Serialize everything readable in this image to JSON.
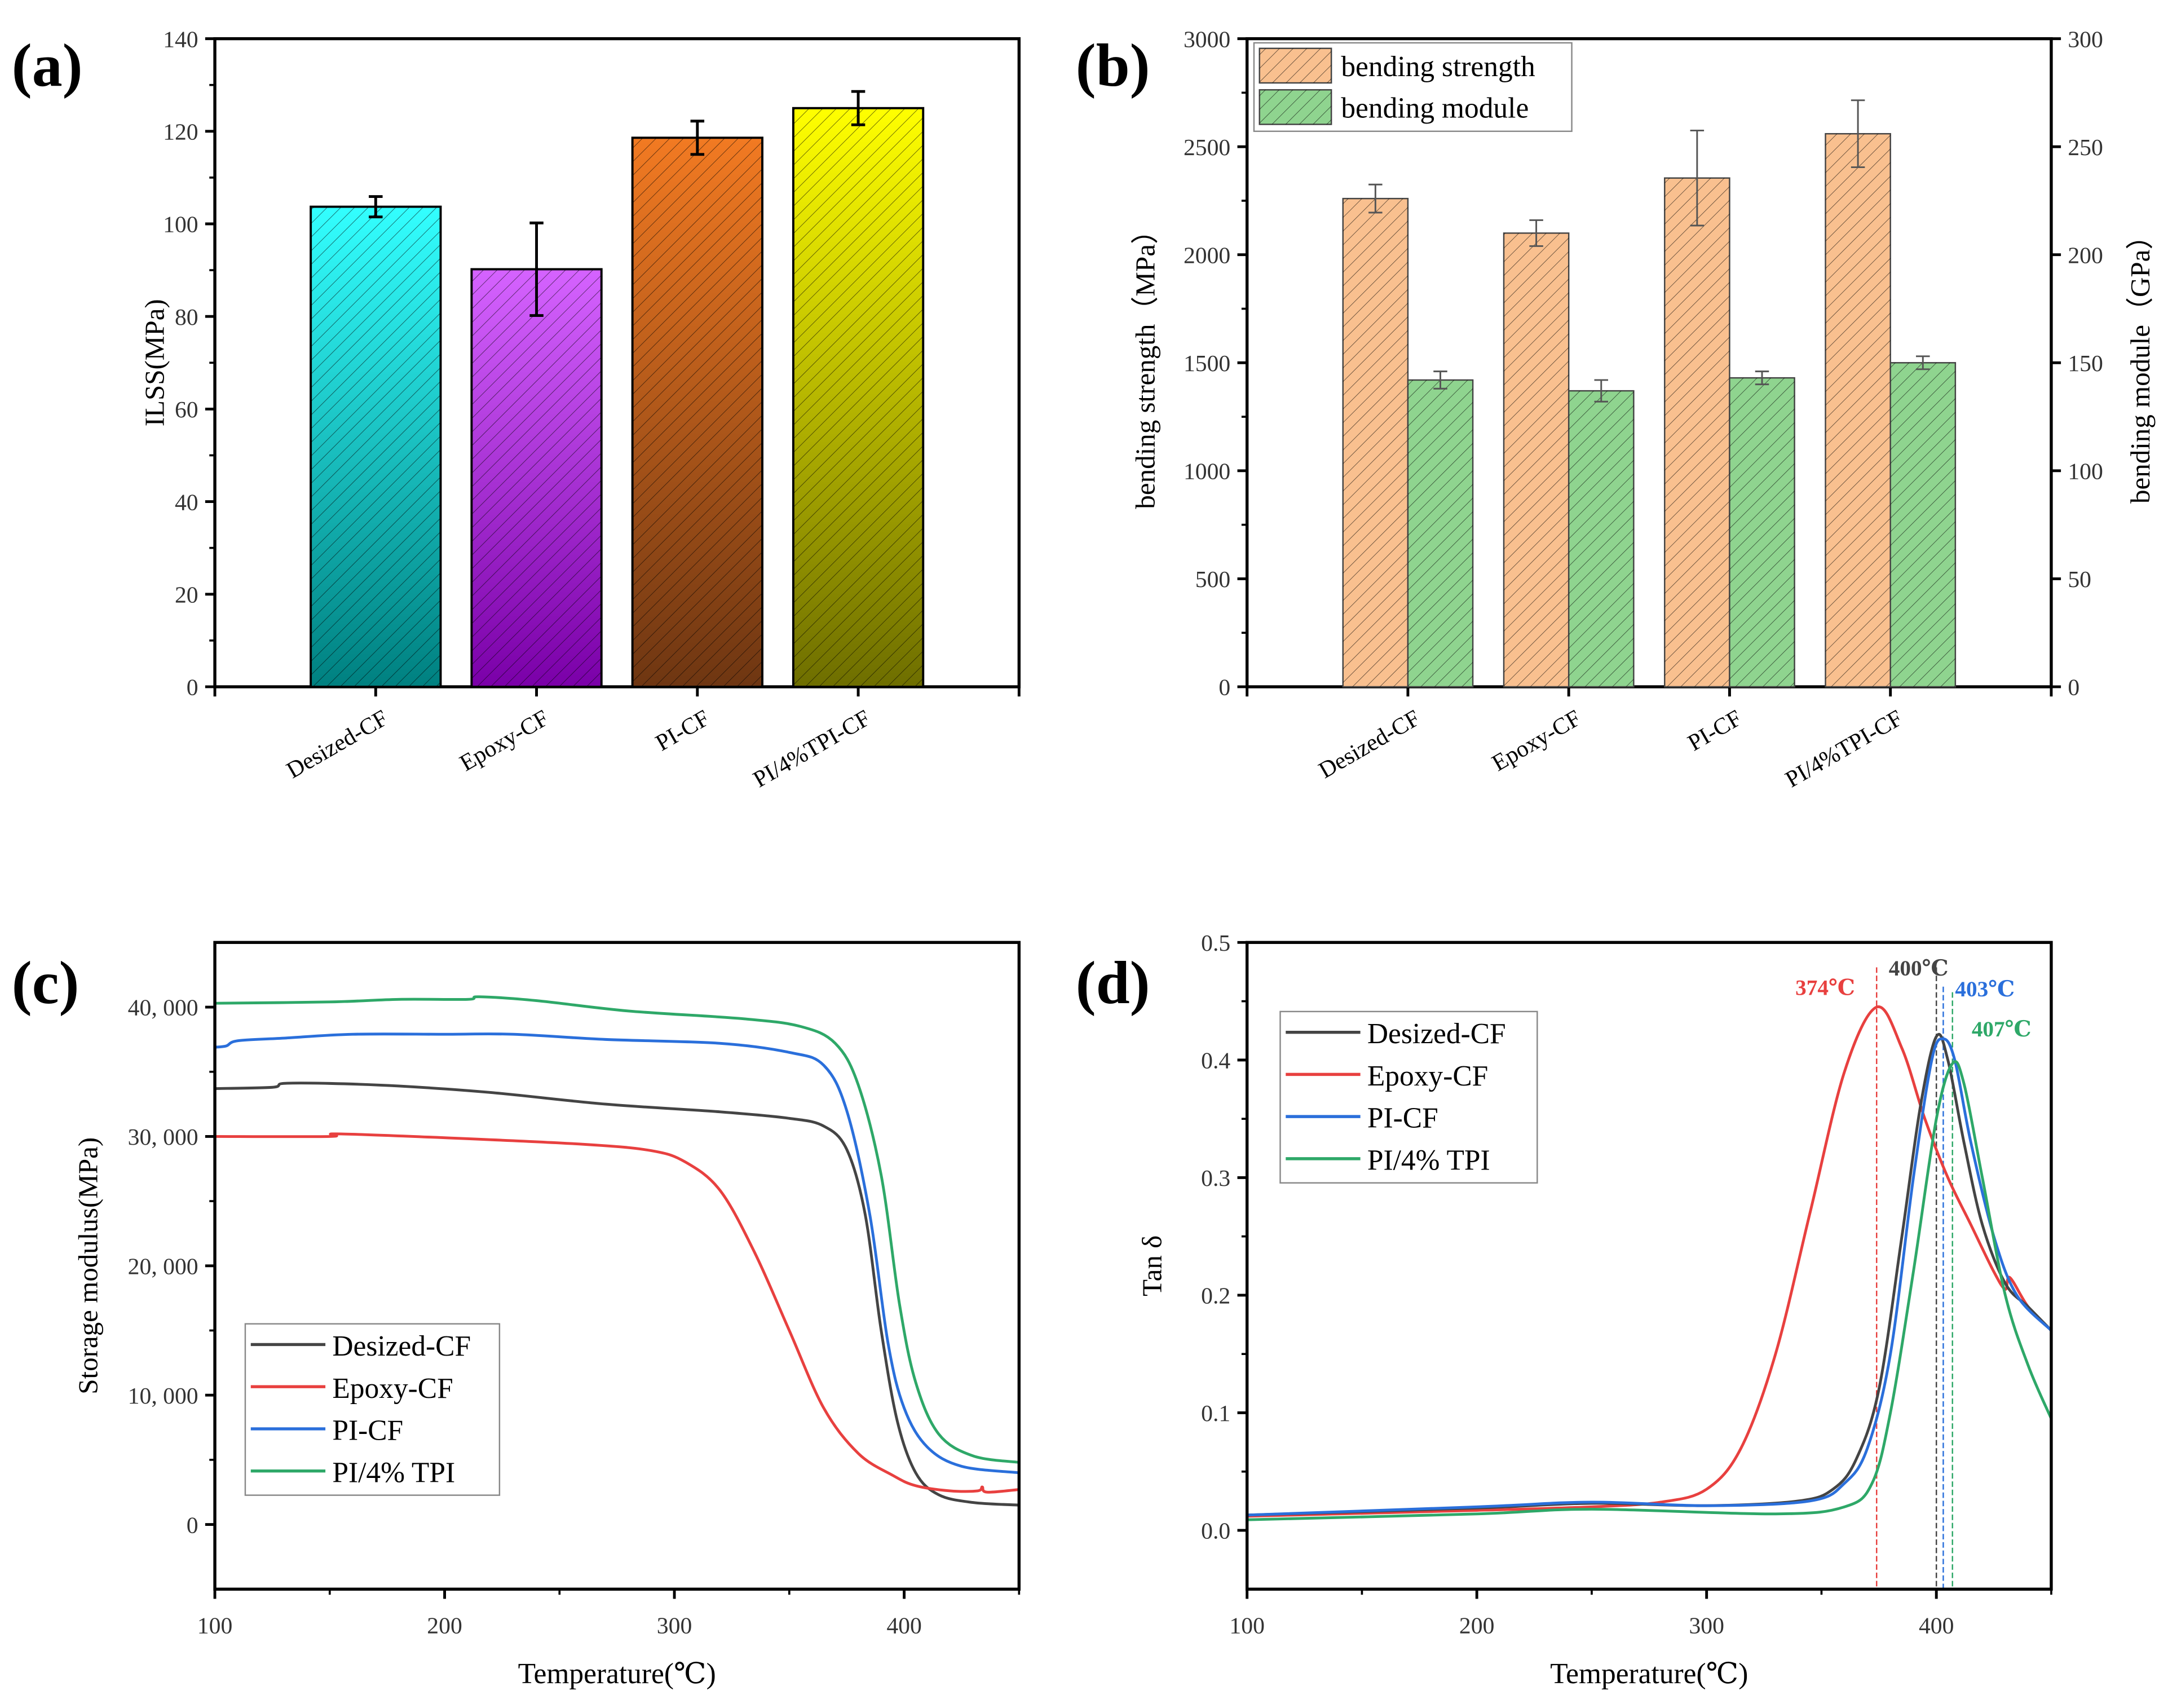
{
  "figure": {
    "panel_labels": [
      "(a)",
      "(b)",
      "(c)",
      "(d)"
    ]
  },
  "chart_data": [
    {
      "type": "bar",
      "panel": "(a)",
      "categories": [
        "Desized-CF",
        "Epoxy-CF",
        "PI-CF",
        "PI/4%TPI-CF"
      ],
      "values": [
        103.7,
        90.2,
        118.6,
        125.0
      ],
      "errors": [
        2.2,
        10.0,
        3.6,
        3.6
      ],
      "colors_top": [
        "#33ffff",
        "#d563ff",
        "#f27a22",
        "#ffff00"
      ],
      "colors_bottom": [
        "#008080",
        "#7a00a8",
        "#6e3612",
        "#6e6e00"
      ],
      "title": "",
      "xlabel": "",
      "ylabel": "ILSS(MPa)",
      "ylim": [
        0,
        140
      ],
      "ytick_values": [
        0,
        20,
        40,
        60,
        80,
        100,
        120,
        140
      ],
      "yticks": [
        "0",
        "20",
        "40",
        "60",
        "80",
        "100",
        "120",
        "140"
      ]
    },
    {
      "type": "bar",
      "panel": "(b)",
      "categories": [
        "Desized-CF",
        "Epoxy-CF",
        "PI-CF",
        "PI/4%TPI-CF"
      ],
      "series": [
        {
          "name": "bending strength",
          "axis": "left",
          "values": [
            2260,
            2100,
            2355,
            2560
          ],
          "errors": [
            65,
            60,
            220,
            155
          ],
          "color": "#f9c08f"
        },
        {
          "name": "bending module",
          "axis": "right",
          "values": [
            142,
            137,
            143,
            150
          ],
          "errors": [
            4,
            5,
            3,
            3
          ],
          "color": "#8fd48f"
        }
      ],
      "ylabel": "bending strength（MPa）",
      "y2label": "bending module（GPa）",
      "ylim": [
        0,
        3000
      ],
      "y2lim": [
        0,
        300
      ],
      "ytick_values": [
        0,
        500,
        1000,
        1500,
        2000,
        2500,
        3000
      ],
      "yticks": [
        "0",
        "500",
        "1000",
        "1500",
        "2000",
        "2500",
        "3000"
      ],
      "y2tick_values": [
        0,
        50,
        100,
        150,
        200,
        250,
        300
      ],
      "y2ticks": [
        "0",
        "50",
        "100",
        "150",
        "200",
        "250",
        "300"
      ],
      "legend": "top-left"
    },
    {
      "type": "line",
      "panel": "(c)",
      "xlabel": "Temperature(℃)",
      "ylabel": "Storage modulus(MPa)",
      "xlim": [
        100,
        450
      ],
      "ylim": [
        -5000,
        45000
      ],
      "xtick_values": [
        100,
        200,
        300,
        400
      ],
      "xticks": [
        "100",
        "200",
        "300",
        "400"
      ],
      "ytick_values": [
        0,
        10000,
        20000,
        30000,
        40000
      ],
      "yticks": [
        "0",
        "10, 000",
        "20, 000",
        "30, 000",
        "40, 000"
      ],
      "legend": "bottom-left",
      "series": [
        {
          "name": "Desized-CF",
          "color": "#444444",
          "points": [
            [
              100,
              33700
            ],
            [
              125,
              33800
            ],
            [
              130,
              34100
            ],
            [
              150,
              34100
            ],
            [
              180,
              33900
            ],
            [
              220,
              33400
            ],
            [
              270,
              32500
            ],
            [
              320,
              31900
            ],
            [
              350,
              31400
            ],
            [
              365,
              30800
            ],
            [
              375,
              29000
            ],
            [
              383,
              24000
            ],
            [
              390,
              15000
            ],
            [
              397,
              8000
            ],
            [
              405,
              4000
            ],
            [
              415,
              2300
            ],
            [
              430,
              1700
            ],
            [
              450,
              1500
            ]
          ]
        },
        {
          "name": "Epoxy-CF",
          "color": "#e8403f",
          "points": [
            [
              100,
              30000
            ],
            [
              150,
              30000
            ],
            [
              153,
              30200
            ],
            [
              200,
              29900
            ],
            [
              260,
              29400
            ],
            [
              290,
              28900
            ],
            [
              305,
              28000
            ],
            [
              320,
              25800
            ],
            [
              335,
              21000
            ],
            [
              350,
              15000
            ],
            [
              365,
              9000
            ],
            [
              380,
              5500
            ],
            [
              395,
              3800
            ],
            [
              405,
              3000
            ],
            [
              420,
              2600
            ],
            [
              432,
              2600
            ],
            [
              434,
              2900
            ],
            [
              436,
              2500
            ],
            [
              450,
              2700
            ]
          ]
        },
        {
          "name": "PI-CF",
          "color": "#2a6fdb",
          "points": [
            [
              100,
              36900
            ],
            [
              105,
              37000
            ],
            [
              110,
              37400
            ],
            [
              130,
              37600
            ],
            [
              160,
              37900
            ],
            [
              200,
              37900
            ],
            [
              230,
              37900
            ],
            [
              270,
              37500
            ],
            [
              320,
              37200
            ],
            [
              350,
              36500
            ],
            [
              365,
              35500
            ],
            [
              375,
              32000
            ],
            [
              385,
              24000
            ],
            [
              393,
              14000
            ],
            [
              400,
              9000
            ],
            [
              410,
              6000
            ],
            [
              425,
              4500
            ],
            [
              450,
              4000
            ]
          ]
        },
        {
          "name": "PI/4% TPI",
          "color": "#2ea868",
          "points": [
            [
              100,
              40300
            ],
            [
              150,
              40400
            ],
            [
              180,
              40600
            ],
            [
              210,
              40600
            ],
            [
              215,
              40800
            ],
            [
              240,
              40500
            ],
            [
              280,
              39700
            ],
            [
              330,
              39100
            ],
            [
              355,
              38500
            ],
            [
              370,
              37200
            ],
            [
              380,
              34000
            ],
            [
              390,
              27000
            ],
            [
              398,
              17000
            ],
            [
              405,
              11000
            ],
            [
              415,
              7000
            ],
            [
              430,
              5300
            ],
            [
              450,
              4800
            ]
          ]
        }
      ]
    },
    {
      "type": "line",
      "panel": "(d)",
      "xlabel": "Temperature(℃)",
      "ylabel": "Tan δ",
      "xlim": [
        100,
        450
      ],
      "ylim": [
        -0.05,
        0.5
      ],
      "xtick_values": [
        100,
        200,
        300,
        400
      ],
      "xticks": [
        "100",
        "200",
        "300",
        "400"
      ],
      "ytick_values": [
        0,
        0.1,
        0.2,
        0.3,
        0.4,
        0.5
      ],
      "yticks": [
        "0.0",
        "0.1",
        "0.2",
        "0.3",
        "0.4",
        "0.5"
      ],
      "legend": "top-left",
      "series": [
        {
          "name": "Desized-CF",
          "color": "#444444",
          "points": [
            [
              100,
              0.013
            ],
            [
              200,
              0.019
            ],
            [
              250,
              0.023
            ],
            [
              300,
              0.021
            ],
            [
              340,
              0.025
            ],
            [
              355,
              0.035
            ],
            [
              365,
              0.06
            ],
            [
              375,
              0.12
            ],
            [
              385,
              0.25
            ],
            [
              393,
              0.36
            ],
            [
              400,
              0.42
            ],
            [
              405,
              0.4
            ],
            [
              412,
              0.33
            ],
            [
              420,
              0.26
            ],
            [
              430,
              0.21
            ],
            [
              440,
              0.19
            ],
            [
              450,
              0.17
            ]
          ]
        },
        {
          "name": "Epoxy-CF",
          "color": "#e8403f",
          "points": [
            [
              100,
              0.012
            ],
            [
              200,
              0.017
            ],
            [
              250,
              0.02
            ],
            [
              280,
              0.024
            ],
            [
              300,
              0.035
            ],
            [
              315,
              0.07
            ],
            [
              330,
              0.15
            ],
            [
              345,
              0.27
            ],
            [
              360,
              0.39
            ],
            [
              374,
              0.445
            ],
            [
              385,
              0.41
            ],
            [
              395,
              0.35
            ],
            [
              405,
              0.3
            ],
            [
              415,
              0.26
            ],
            [
              425,
              0.22
            ],
            [
              430,
              0.205
            ],
            [
              432,
              0.215
            ],
            [
              440,
              0.19
            ],
            [
              450,
              0.17
            ]
          ]
        },
        {
          "name": "PI-CF",
          "color": "#2a6fdb",
          "points": [
            [
              100,
              0.013
            ],
            [
              200,
              0.02
            ],
            [
              250,
              0.024
            ],
            [
              300,
              0.021
            ],
            [
              345,
              0.025
            ],
            [
              360,
              0.04
            ],
            [
              370,
              0.07
            ],
            [
              380,
              0.15
            ],
            [
              390,
              0.3
            ],
            [
              398,
              0.4
            ],
            [
              403,
              0.418
            ],
            [
              408,
              0.4
            ],
            [
              415,
              0.33
            ],
            [
              425,
              0.25
            ],
            [
              435,
              0.2
            ],
            [
              450,
              0.17
            ]
          ]
        },
        {
          "name": "PI/4% TPI",
          "color": "#2ea868",
          "points": [
            [
              100,
              0.009
            ],
            [
              200,
              0.014
            ],
            [
              250,
              0.018
            ],
            [
              330,
              0.014
            ],
            [
              360,
              0.02
            ],
            [
              372,
              0.04
            ],
            [
              380,
              0.1
            ],
            [
              390,
              0.22
            ],
            [
              400,
              0.35
            ],
            [
              407,
              0.397
            ],
            [
              412,
              0.38
            ],
            [
              420,
              0.3
            ],
            [
              430,
              0.2
            ],
            [
              440,
              0.14
            ],
            [
              450,
              0.095
            ]
          ]
        }
      ],
      "annotations": [
        {
          "text": "374℃",
          "x": 374,
          "color": "#e8403f"
        },
        {
          "text": "400℃",
          "x": 400,
          "color": "#444444"
        },
        {
          "text": "403℃",
          "x": 403,
          "color": "#2a6fdb"
        },
        {
          "text": "407℃",
          "x": 407,
          "color": "#2ea868"
        }
      ]
    }
  ]
}
